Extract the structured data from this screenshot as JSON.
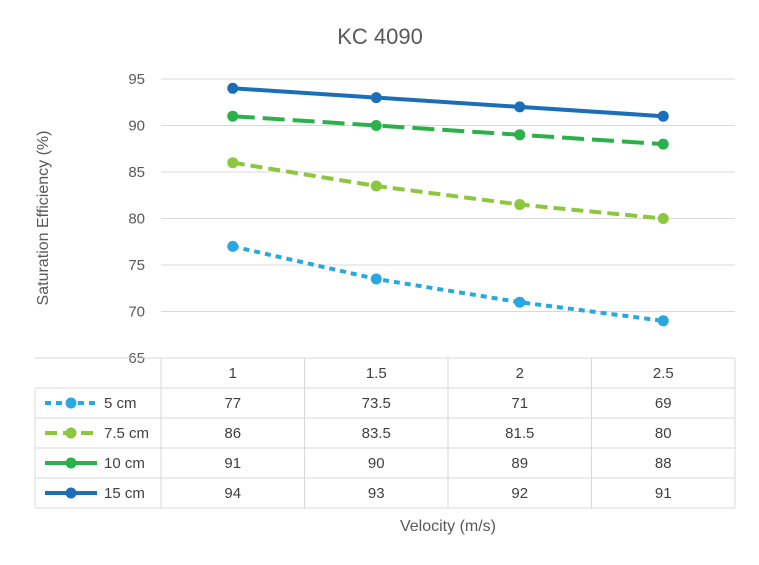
{
  "chart_data": {
    "type": "line",
    "title": "KC 4090",
    "xlabel": "Velocity (m/s)",
    "ylabel": "Saturation Efficiency (%)",
    "ylim": [
      65,
      95
    ],
    "yticks": [
      65,
      70,
      75,
      80,
      85,
      90,
      95
    ],
    "categories": [
      "1",
      "1.5",
      "2",
      "2.5"
    ],
    "grid": true,
    "legend": "data-table",
    "series": [
      {
        "name": "5 cm",
        "values": [
          77,
          73.5,
          71,
          69
        ],
        "display": [
          "77",
          "73.5",
          "71",
          "69"
        ],
        "color": "#29A8E0",
        "dash": "short"
      },
      {
        "name": "7.5 cm",
        "values": [
          86,
          83.5,
          81.5,
          80
        ],
        "display": [
          "86",
          "83.5",
          "81.5",
          "80"
        ],
        "color": "#8DC63F",
        "dash": "medium"
      },
      {
        "name": "10 cm",
        "values": [
          91,
          90,
          89,
          88
        ],
        "display": [
          "91",
          "90",
          "89",
          "88"
        ],
        "color": "#2BB14A",
        "dash": "long"
      },
      {
        "name": "15 cm",
        "values": [
          94,
          93,
          92,
          91
        ],
        "display": [
          "94",
          "93",
          "92",
          "91"
        ],
        "color": "#1B6FB8",
        "dash": "solid"
      }
    ]
  }
}
